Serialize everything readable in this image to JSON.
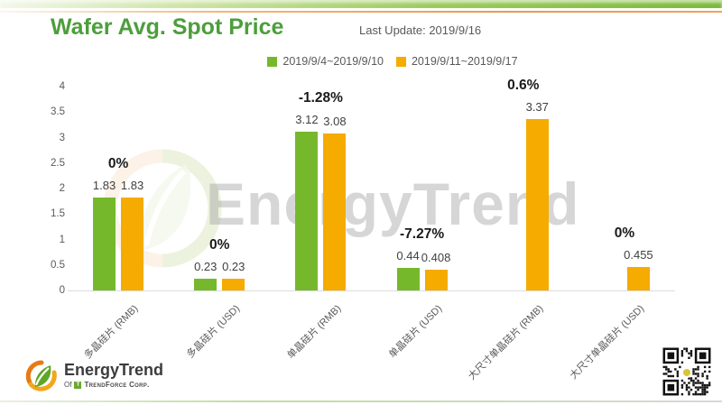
{
  "header": {
    "title": "Wafer Avg. Spot Price",
    "last_update": "Last Update: 2019/9/16"
  },
  "legend": [
    {
      "label": "2019/9/4~2019/9/10",
      "color": "#76b82b"
    },
    {
      "label": "2019/9/11~2019/9/17",
      "color": "#f5ab00"
    }
  ],
  "colors": {
    "title_green": "#4d9e3c",
    "series_green": "#76b82b",
    "series_orange": "#f5ab00",
    "text_gray": "#595959",
    "axis_line": "#dcdcdc"
  },
  "chart_data": {
    "type": "bar",
    "title": "Wafer Avg. Spot Price",
    "categories": [
      "多晶硅片 (RMB)",
      "多晶硅片 (USD)",
      "单晶硅片 (RMB)",
      "单晶硅片 (USD)",
      "大尺寸单晶硅片 (RMB)",
      "大尺寸单晶硅片 (USD)"
    ],
    "series": [
      {
        "name": "2019/9/4~2019/9/10",
        "color": "#76b82b",
        "values": [
          1.83,
          0.23,
          3.12,
          0.44,
          null,
          null
        ]
      },
      {
        "name": "2019/9/11~2019/9/17",
        "color": "#f5ab00",
        "values": [
          1.83,
          0.23,
          3.08,
          0.408,
          3.37,
          0.455
        ]
      }
    ],
    "value_labels": [
      [
        "1.83",
        "1.83"
      ],
      [
        "0.23",
        "0.23"
      ],
      [
        "3.12",
        "3.08"
      ],
      [
        "0.44",
        "0.408"
      ],
      [
        null,
        "3.37"
      ],
      [
        null,
        "0.455"
      ]
    ],
    "change_labels": [
      "0%",
      "0%",
      "-1.28%",
      "-7.27%",
      "0.6%",
      "0%"
    ],
    "xlabel": "",
    "ylabel": "",
    "ylim": [
      0,
      4
    ],
    "yticks": [
      "0",
      "0.5",
      "1",
      "1.5",
      "2",
      "2.5",
      "3",
      "3.5",
      "4"
    ],
    "grid": false,
    "legend_position": "top"
  },
  "watermark": {
    "text": "EnergyTrend"
  },
  "footer": {
    "brand": "EnergyTrend",
    "of": "Of",
    "tf_initial": "T",
    "subbrand": "TrendForce Corp."
  }
}
